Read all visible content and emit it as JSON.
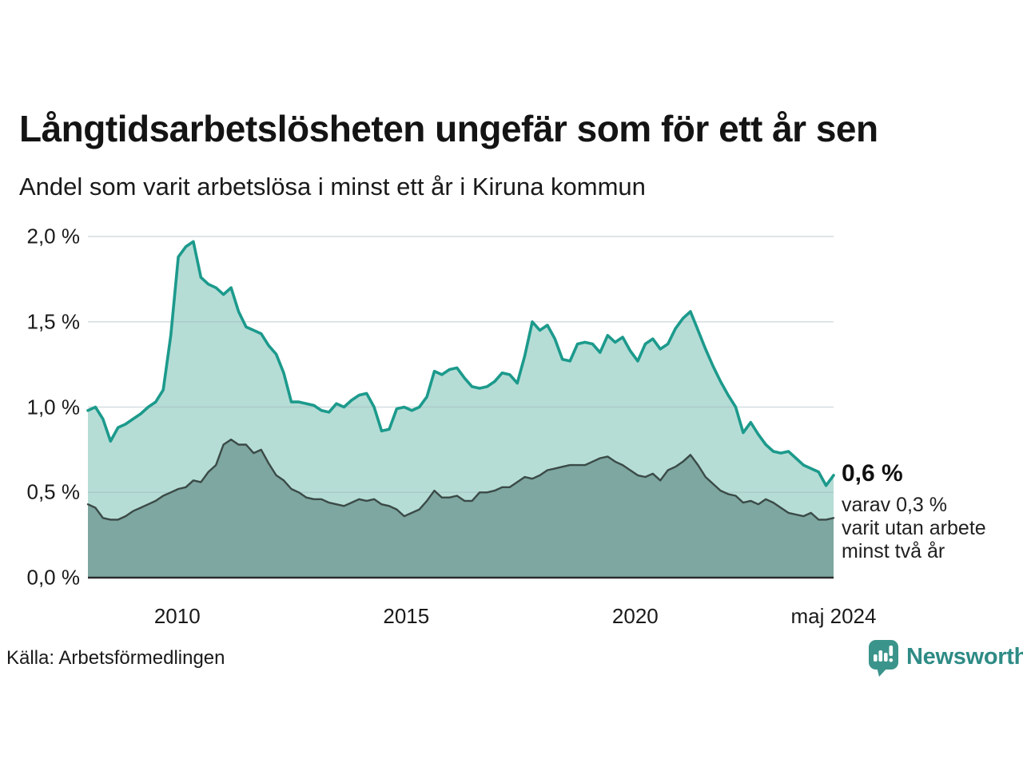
{
  "header": {
    "title": "Långtidsarbetslösheten ungefär som för ett år sen",
    "subtitle": "Andel som varit arbetslösa i minst ett år i Kiruna kommun"
  },
  "annotation": {
    "value_label": "0,6 %",
    "detail_lines": [
      "varav 0,3 %",
      "varit utan arbete",
      "minst två år"
    ]
  },
  "footer": {
    "source": "Källa: Arbetsförmedlingen",
    "logo_text": "Newsworthy"
  },
  "colors": {
    "line_one_year": "#1c9a8c",
    "fill_one_year": "#b5ddd6",
    "line_two_years": "#3b4a47",
    "fill_two_years": "#7da7a0",
    "gridline": "#9fb3ba",
    "axis": "#2c2c2c",
    "logo_teal": "#2e8b85",
    "logo_icon": "#3b948b"
  },
  "chart_data": {
    "type": "area",
    "title": "Långtidsarbetslösheten ungefär som för ett år sen",
    "subtitle": "Andel som varit arbetslösa i minst ett år i Kiruna kommun",
    "x_start_year": 2008.05,
    "x_end_year": 2024.33,
    "ylim": [
      0,
      2.0
    ],
    "grid": true,
    "y_ticks": [
      {
        "label": "0,0 %",
        "value": 0.0
      },
      {
        "label": "0,5 %",
        "value": 0.5
      },
      {
        "label": "1,0 %",
        "value": 1.0
      },
      {
        "label": "1,5 %",
        "value": 1.5
      },
      {
        "label": "2,0 %",
        "value": 2.0
      }
    ],
    "x_ticks": [
      {
        "label": "2010",
        "year": 2010
      },
      {
        "label": "2015",
        "year": 2015
      },
      {
        "label": "2020",
        "year": 2020
      },
      {
        "label": "maj 2024",
        "year": 2024.33
      }
    ],
    "series": [
      {
        "name": "Andel arbetslösa minst ett år",
        "end_value_pct": 0.6,
        "values": [
          0.98,
          1.0,
          0.93,
          0.8,
          0.88,
          0.9,
          0.93,
          0.96,
          1.0,
          1.03,
          1.1,
          1.42,
          1.88,
          1.94,
          1.97,
          1.76,
          1.72,
          1.7,
          1.66,
          1.7,
          1.56,
          1.47,
          1.45,
          1.43,
          1.36,
          1.31,
          1.2,
          1.03,
          1.03,
          1.02,
          1.01,
          0.98,
          0.97,
          1.02,
          1.0,
          1.04,
          1.07,
          1.08,
          1.0,
          0.86,
          0.87,
          0.99,
          1.0,
          0.98,
          1.0,
          1.06,
          1.21,
          1.19,
          1.22,
          1.23,
          1.17,
          1.12,
          1.11,
          1.12,
          1.15,
          1.2,
          1.19,
          1.14,
          1.3,
          1.5,
          1.45,
          1.48,
          1.4,
          1.28,
          1.27,
          1.37,
          1.38,
          1.37,
          1.32,
          1.42,
          1.38,
          1.41,
          1.33,
          1.27,
          1.37,
          1.4,
          1.34,
          1.37,
          1.46,
          1.52,
          1.56,
          1.45,
          1.34,
          1.24,
          1.15,
          1.07,
          1.0,
          0.85,
          0.91,
          0.84,
          0.78,
          0.74,
          0.73,
          0.74,
          0.7,
          0.66,
          0.64,
          0.62,
          0.54,
          0.6
        ]
      },
      {
        "name": "varav utan arbete minst två år",
        "end_value_pct": 0.3,
        "values": [
          0.43,
          0.41,
          0.35,
          0.34,
          0.34,
          0.36,
          0.39,
          0.41,
          0.43,
          0.45,
          0.48,
          0.5,
          0.52,
          0.53,
          0.57,
          0.56,
          0.62,
          0.66,
          0.78,
          0.81,
          0.78,
          0.78,
          0.73,
          0.75,
          0.67,
          0.6,
          0.57,
          0.52,
          0.5,
          0.47,
          0.46,
          0.46,
          0.44,
          0.43,
          0.42,
          0.44,
          0.46,
          0.45,
          0.46,
          0.43,
          0.42,
          0.4,
          0.36,
          0.38,
          0.4,
          0.45,
          0.51,
          0.47,
          0.47,
          0.48,
          0.45,
          0.45,
          0.5,
          0.5,
          0.51,
          0.53,
          0.53,
          0.56,
          0.59,
          0.58,
          0.6,
          0.63,
          0.64,
          0.65,
          0.66,
          0.66,
          0.66,
          0.68,
          0.7,
          0.71,
          0.68,
          0.66,
          0.63,
          0.6,
          0.59,
          0.61,
          0.57,
          0.63,
          0.65,
          0.68,
          0.72,
          0.66,
          0.59,
          0.55,
          0.51,
          0.49,
          0.48,
          0.44,
          0.45,
          0.43,
          0.46,
          0.44,
          0.41,
          0.38,
          0.37,
          0.36,
          0.38,
          0.34,
          0.34,
          0.35
        ]
      }
    ]
  }
}
